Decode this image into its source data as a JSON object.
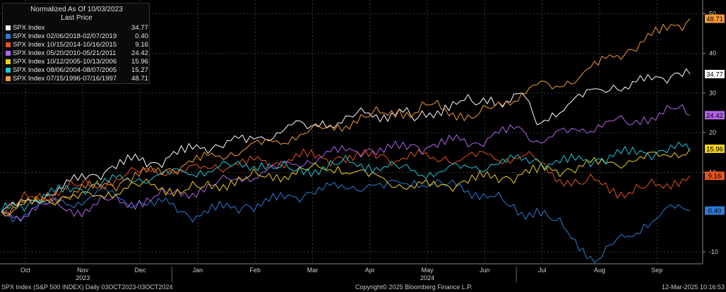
{
  "legend": {
    "title": "Normalized As Of 10/03/2023",
    "subtitle": "Last Price"
  },
  "footer": {
    "left": "SPX Index (S&P 500 INDEX)  Daily 03OCT2023-03OCT2024",
    "middle": "Copyright© 2025 Bloomberg Finance L.P.",
    "right": "12-Mar-2025 10:16:53"
  },
  "chart_data": {
    "type": "line",
    "x_ticks": [
      "Oct",
      "Nov",
      "Dec",
      "Jan",
      "Feb",
      "Mar",
      "Apr",
      "May",
      "Jun",
      "Jul",
      "Aug",
      "Sep"
    ],
    "year_labels": [
      {
        "label": "2023",
        "at": "Nov"
      },
      {
        "label": "2024",
        "at": "May"
      }
    ],
    "y_ticks": [
      "50",
      "40",
      "30",
      "20",
      "10",
      "-10"
    ],
    "ylim": [
      -13,
      52
    ],
    "grid": true,
    "legend_position": "top-left",
    "series": [
      {
        "name": "SPX Index",
        "last": "34.77",
        "color": "#ffffff",
        "values": [
          0,
          1.5,
          3,
          4.5,
          6,
          8,
          9.5,
          11,
          12,
          13,
          12.5,
          14,
          15,
          16,
          17,
          18,
          17.5,
          19,
          20,
          22,
          21,
          23,
          22.5,
          24,
          25,
          24.5,
          26,
          23,
          25,
          27,
          28,
          27,
          29,
          28,
          30,
          22,
          25,
          27,
          29,
          31,
          32,
          31,
          33,
          34,
          35,
          34.77
        ]
      },
      {
        "name": "SPX Index 02/06/2018-02/07/2019",
        "last": "0.40",
        "color": "#2d7bd8",
        "values": [
          0,
          -1,
          1,
          2,
          3,
          2.5,
          4,
          5,
          3,
          2.5,
          1.5,
          2,
          0,
          -1,
          0.5,
          1,
          2,
          1.5,
          3,
          4,
          5,
          5.5,
          6,
          6.5,
          7,
          6,
          7.5,
          8,
          7,
          6.5,
          7,
          5,
          4,
          2,
          0,
          1,
          -2,
          -5,
          -9,
          -12,
          -8,
          -6,
          -3,
          -1,
          1,
          0.4
        ]
      },
      {
        "name": "SPX Index 10/15/2014-10/16/2015",
        "last": "9.16",
        "color": "#e8531c",
        "values": [
          0,
          2,
          4,
          5,
          6,
          6.5,
          7,
          8,
          9,
          10,
          11,
          10.5,
          10,
          11,
          12,
          11.5,
          12,
          13,
          12.5,
          13,
          14,
          13.5,
          14,
          13,
          14,
          14.5,
          13,
          14,
          13.5,
          14,
          13,
          14,
          14.5,
          13.5,
          14,
          13,
          10,
          8,
          7,
          8,
          6,
          5,
          6,
          7,
          8,
          9.16
        ]
      },
      {
        "name": "SPX Index 05/20/2010-05/21/2011",
        "last": "24.42",
        "color": "#b364e8",
        "values": [
          0,
          -1,
          1,
          2,
          1,
          0.5,
          2,
          3,
          2.5,
          3,
          4,
          4.5,
          5,
          6,
          7,
          8,
          9,
          10,
          11,
          12,
          13,
          14,
          15,
          15.5,
          16,
          15,
          16,
          17,
          16.5,
          17,
          18,
          17.5,
          19,
          20,
          21,
          18,
          19,
          20,
          21,
          22,
          23,
          22,
          24,
          25,
          26,
          24.42
        ]
      },
      {
        "name": "SPX Index 10/12/2005-10/13/2006",
        "last": "15.96",
        "color": "#f0d020",
        "values": [
          0,
          1,
          2,
          3,
          4,
          3.5,
          4,
          5,
          6,
          6.5,
          7,
          6,
          5.5,
          6,
          7,
          8,
          8.5,
          9,
          9.5,
          10,
          10.5,
          11,
          11.5,
          10,
          9,
          8.5,
          7,
          6,
          6.5,
          7,
          7.5,
          8,
          8.5,
          9,
          9.5,
          10,
          10.5,
          11,
          11.5,
          12,
          12.5,
          13,
          13.5,
          14,
          15,
          15.96
        ]
      },
      {
        "name": "SPX Index 08/06/2004-08/07/2005",
        "last": "15.27",
        "color": "#1fc8d8",
        "values": [
          0,
          1.5,
          3,
          4,
          5,
          6,
          7,
          7.5,
          8,
          8.5,
          9,
          9.5,
          10,
          10.5,
          11,
          11.5,
          12,
          12.5,
          11,
          10.5,
          11,
          11.5,
          12,
          12.5,
          12,
          11.5,
          11,
          10.5,
          10,
          10.5,
          11,
          11.5,
          12,
          12.5,
          13,
          13.5,
          12,
          12.5,
          13,
          13.5,
          14,
          14.5,
          15,
          15.5,
          16,
          15.27
        ]
      },
      {
        "name": "SPX Index 07/15/1996-07/16/1997",
        "last": "48.71",
        "color": "#f59a35",
        "values": [
          0,
          1,
          2,
          3,
          4,
          5,
          6,
          7,
          8,
          9,
          10,
          11,
          12,
          13,
          14,
          15,
          16,
          17,
          18,
          19,
          20,
          21,
          22,
          23,
          24,
          25,
          26,
          25,
          27,
          26,
          25,
          24,
          26,
          28,
          30,
          32,
          31,
          33,
          35,
          37,
          39,
          41,
          43,
          45,
          47,
          48.71
        ]
      }
    ]
  }
}
